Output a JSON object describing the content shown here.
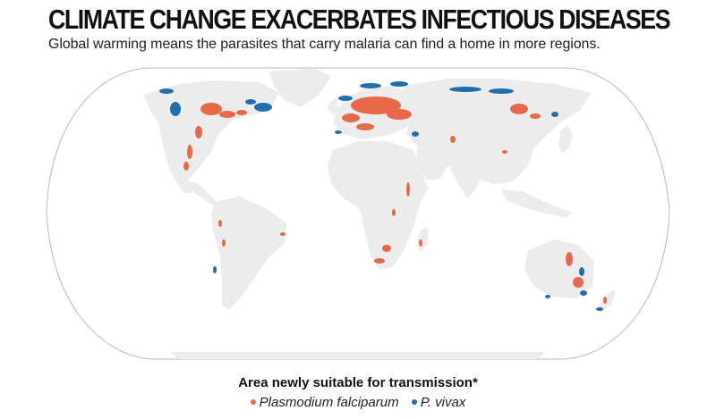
{
  "header": {
    "title": "CLIMATE CHANGE EXACERBATES INFECTIOUS DISEASES",
    "subtitle": "Global warming means the parasites that carry malaria can find a home in more regions."
  },
  "map": {
    "projection": "robinson",
    "land_color": "#ececec",
    "outline_color": "#b9b9b9"
  },
  "legend": {
    "title": "Area newly suitable for transmission*",
    "items": [
      {
        "label": "Plasmodium falciparum",
        "color": "#e8694a",
        "icon": "orange-dot"
      },
      {
        "label": "P. vivax",
        "color": "#1f6fae",
        "icon": "blue-dot"
      }
    ]
  }
}
